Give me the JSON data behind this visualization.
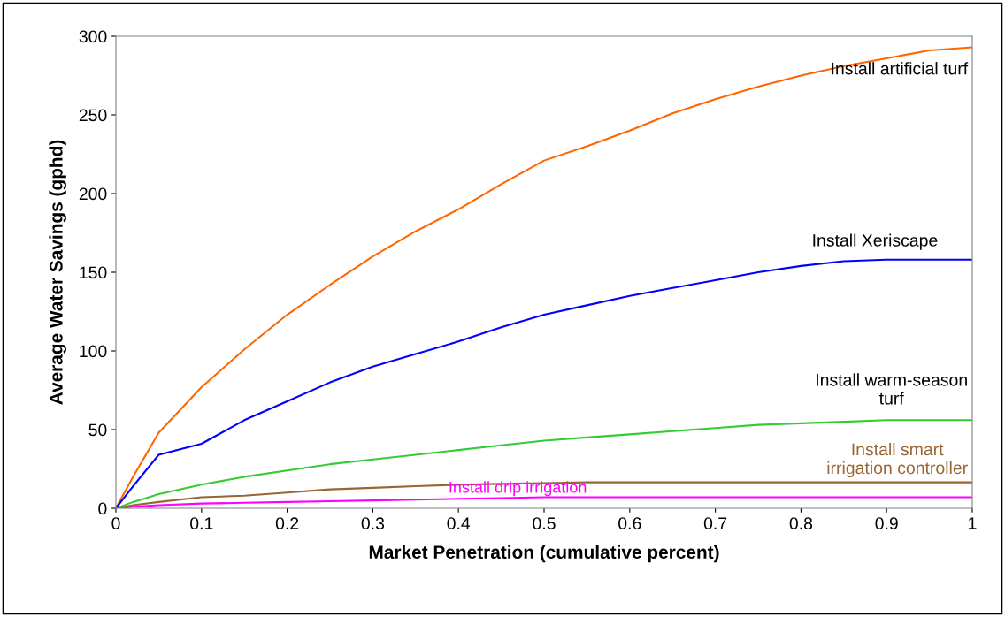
{
  "chart_data": {
    "type": "line",
    "xlabel": "Market Penetration (cumulative percent)",
    "ylabel": "Average Water Savings (gphd)",
    "xlim": [
      0,
      1
    ],
    "ylim": [
      0,
      300
    ],
    "xticks": [
      0,
      0.1,
      0.2,
      0.3,
      0.4,
      0.5,
      0.6,
      0.7,
      0.8,
      0.9,
      1
    ],
    "yticks": [
      0,
      50,
      100,
      150,
      200,
      250,
      300
    ],
    "grid": false,
    "legend": false,
    "marker": "none",
    "line_style": "solid",
    "x": [
      0,
      0.02,
      0.05,
      0.1,
      0.15,
      0.2,
      0.25,
      0.3,
      0.35,
      0.4,
      0.45,
      0.5,
      0.55,
      0.6,
      0.65,
      0.7,
      0.75,
      0.8,
      0.85,
      0.9,
      0.95,
      1
    ],
    "series": [
      {
        "name": "Install artificial turf",
        "color": "#ff6600",
        "values": [
          0,
          20,
          48,
          77,
          101,
          123,
          142,
          160,
          176,
          190,
          206,
          221,
          230,
          240,
          251,
          260,
          268,
          275,
          281,
          286,
          291,
          293
        ]
      },
      {
        "name": "Install Xeriscape",
        "color": "#0000ff",
        "values": [
          0,
          14,
          34,
          41,
          56,
          68,
          80,
          90,
          98,
          106,
          115,
          123,
          129,
          135,
          140,
          145,
          150,
          154,
          157,
          158,
          158,
          158
        ]
      },
      {
        "name": "Install warm-season\nturf",
        "color": "#33cc33",
        "values": [
          0,
          4,
          9,
          15,
          20,
          24,
          28,
          31,
          34,
          37,
          40,
          43,
          45,
          47,
          49,
          51,
          53,
          54,
          55,
          56,
          56,
          56
        ]
      },
      {
        "name": "Install smart\nirrigation controller",
        "color": "#996633",
        "values": [
          0,
          2,
          4,
          7,
          8,
          10,
          12,
          13,
          14,
          15,
          15.5,
          16,
          16.5,
          16.5,
          16.5,
          16.5,
          16.5,
          16.5,
          16.5,
          16.5,
          16.5,
          16.5
        ]
      },
      {
        "name": "Install drip irrigation",
        "color": "#ff00ff",
        "values": [
          0,
          1,
          2,
          3,
          3.5,
          4,
          4.5,
          5,
          5.5,
          6,
          6.5,
          7,
          7,
          7,
          7,
          7,
          7,
          7,
          7,
          7,
          7,
          7
        ]
      }
    ]
  }
}
